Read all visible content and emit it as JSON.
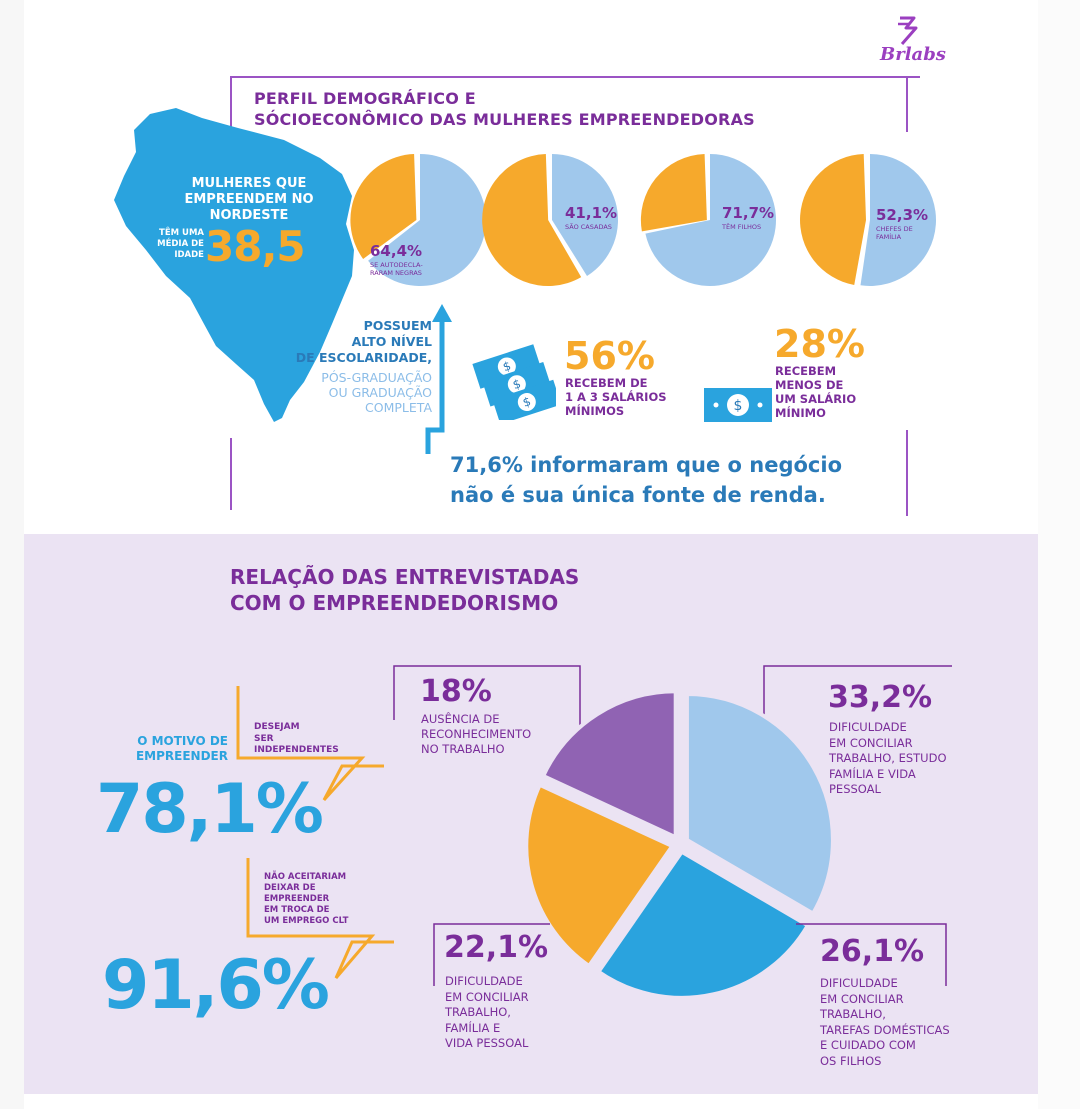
{
  "brand": {
    "logo_text": "Brlabs"
  },
  "section1": {
    "title_line1": "PERFIL DEMOGRÁFICO E",
    "title_line2": "SÓCIOECONÔMICO DAS MULHERES EMPREENDEDORAS",
    "map_text": "MULHERES QUE\nEMPREENDEM NO\nNORDESTE",
    "age_label": "TÊM UMA\nMÉDIA DE\nIDADE",
    "age_value": "38,5",
    "escolaridade_bold": "POSSUEM\nALTO NÍVEL\nDE ESCOLARIDADE,",
    "escolaridade_light": "PÓS-GRADUAÇÃO\nOU GRADUAÇÃO\nCOMPLETA",
    "income_56_value": "56%",
    "income_56_text": "RECEBEM DE\n1 A 3 SALÁRIOS\nMÍNIMOS",
    "income_28_value": "28%",
    "income_28_text": "RECEBEM\nMENOS DE\nUM SALÁRIO\nMÍNIMO",
    "renda_line1": "71,6% informaram que o negócio",
    "renda_line2": "não é sua única fonte de renda."
  },
  "section2": {
    "title_line1": "RELAÇÃO DAS ENTREVISTADAS",
    "title_line2": "COM O EMPREENDEDORISMO",
    "motivo": "O MOTIVO DE\nEMPREENDER",
    "desejam": "DESEJAM\nSER\nINDEPENDENTES",
    "big1": "78,1%",
    "nao_aceitariam": "NÃO ACEITARIAM\nDEIXAR DE\nEMPREENDER\nEM TROCA DE\nUM EMPREGO CLT",
    "big2": "91,6%"
  },
  "colors": {
    "purple": "#7a2d9a",
    "orange": "#f6a92c",
    "light_blue": "#a0c8ec",
    "blue": "#2aa3de",
    "violet": "#9063b3"
  },
  "chart_data": [
    {
      "type": "pie",
      "slices": [
        {
          "label": "SE AUTODECLARARAM NEGRAS",
          "value": 64.4,
          "display": "64,4%",
          "sub": "SE AUTODECLA-\nRARAM NEGRAS"
        }
      ]
    },
    {
      "type": "pie",
      "slices": [
        {
          "label": "SÃO CASADAS",
          "value": 41.1,
          "display": "41,1%",
          "sub": "SÃO CASADAS"
        }
      ]
    },
    {
      "type": "pie",
      "slices": [
        {
          "label": "TÊM FILHOS",
          "value": 71.7,
          "display": "71,7%",
          "sub": "TÊM FILHOS"
        }
      ]
    },
    {
      "type": "pie",
      "slices": [
        {
          "label": "CHEFES DE FAMÍLIA",
          "value": 52.3,
          "display": "52,3%",
          "sub": "CHEFES DE\nFAMÍLIA"
        }
      ]
    },
    {
      "type": "pie",
      "slices": [
        {
          "label": "DIFICULDADE EM CONCILIAR TRABALHO, ESTUDO FAMÍLIA E VIDA PESSOAL",
          "value": 33.2,
          "display": "33,2%",
          "text": "DIFICULDADE\nEM CONCILIAR\nTRABALHO, ESTUDO\nFAMÍLIA E VIDA\nPESSOAL"
        },
        {
          "label": "DIFICULDADE EM CONCILIAR TRABALHO, TAREFAS DOMÉSTICAS E CUIDADO COM OS FILHOS",
          "value": 26.1,
          "display": "26,1%",
          "text": "DIFICULDADE\nEM CONCILIAR\nTRABALHO,\nTAREFAS DOMÉSTICAS\nE CUIDADO COM\nOS FILHOS"
        },
        {
          "label": "DIFICULDADE EM CONCILIAR TRABALHO, FAMÍLIA E VIDA PESSOAL",
          "value": 22.1,
          "display": "22,1%",
          "text": "DIFICULDADE\nEM CONCILIAR\nTRABALHO,\nFAMÍLIA E\nVIDA PESSOAL"
        },
        {
          "label": "AUSÊNCIA DE RECONHECIMENTO NO TRABALHO",
          "value": 18,
          "display": "18%",
          "text": "AUSÊNCIA DE\nRECONHECIMENTO\nNO TRABALHO"
        }
      ]
    }
  ]
}
